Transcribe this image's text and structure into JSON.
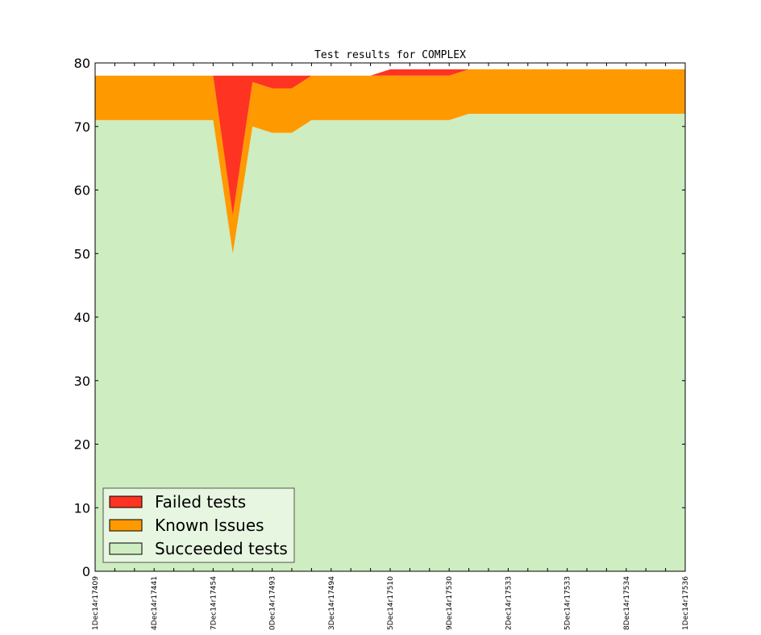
{
  "chart_data": {
    "type": "area",
    "stacked": true,
    "title": "Test results for COMPLEX",
    "xlabel": "",
    "ylabel": "",
    "ylim": [
      0,
      80
    ],
    "yticks": [
      0,
      10,
      20,
      30,
      40,
      50,
      60,
      70,
      80
    ],
    "grid": false,
    "legend_position": "bottom-left",
    "x": [
      0,
      1,
      2,
      3,
      4,
      5,
      6,
      7,
      8,
      9,
      10,
      11,
      12,
      13,
      14,
      15,
      16,
      17,
      18,
      19,
      20,
      21,
      22,
      23,
      24,
      25,
      26,
      27,
      28,
      29,
      30
    ],
    "x_tick_positions": [
      0,
      3,
      6,
      9,
      12,
      15,
      18,
      21,
      24,
      27,
      30
    ],
    "x_tick_labels": [
      "1Dec14r17409",
      "4Dec14r17441",
      "7Dec14r17454",
      "0Dec14r17493",
      "3Dec14r17494",
      "5Dec14r17510",
      "9Dec14r17530",
      "2Dec14r17533",
      "5Dec14r17533",
      "8Dec14r17534",
      "1Dec14r17536"
    ],
    "series": [
      {
        "name": "Succeeded tests",
        "color": "#ceedc0",
        "values": [
          71,
          71,
          71,
          71,
          71,
          71,
          71,
          50,
          70,
          69,
          69,
          71,
          71,
          71,
          71,
          71,
          71,
          71,
          71,
          72,
          72,
          72,
          72,
          72,
          72,
          72,
          72,
          72,
          72,
          72,
          72
        ]
      },
      {
        "name": "Known Issues",
        "color": "#ff9900",
        "values": [
          7,
          7,
          7,
          7,
          7,
          7,
          7,
          6,
          7,
          7,
          7,
          7,
          7,
          7,
          7,
          7,
          7,
          7,
          7,
          7,
          7,
          7,
          7,
          7,
          7,
          7,
          7,
          7,
          7,
          7,
          7
        ]
      },
      {
        "name": "Failed tests",
        "color": "#ff3322",
        "values": [
          0,
          0,
          0,
          0,
          0,
          0,
          0,
          22,
          1,
          2,
          2,
          0,
          0,
          0,
          0,
          1,
          1,
          1,
          1,
          0,
          0,
          0,
          0,
          0,
          0,
          0,
          0,
          0,
          0,
          0,
          0
        ]
      }
    ],
    "legend": [
      "Failed tests",
      "Known Issues",
      "Succeeded tests"
    ]
  }
}
